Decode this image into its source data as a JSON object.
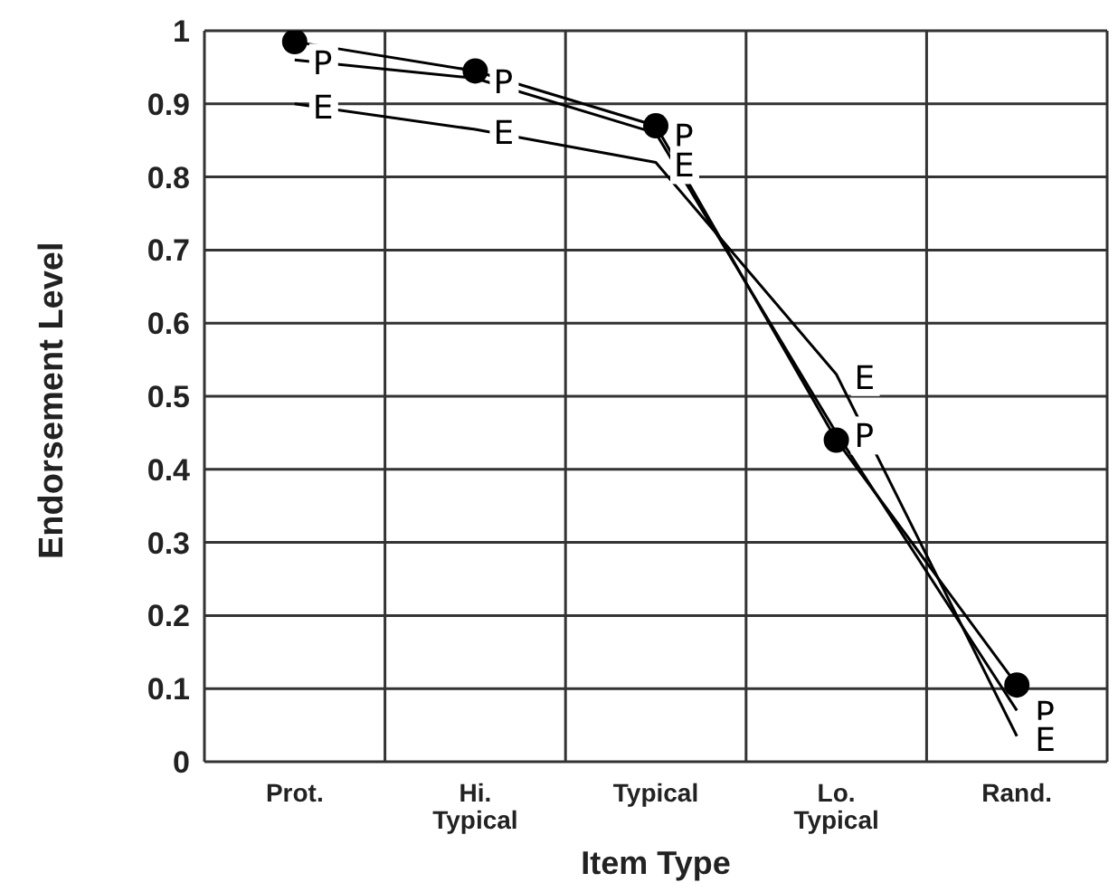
{
  "chart_data": {
    "type": "line",
    "xlabel": "Item Type",
    "ylabel": "Endorsement Level",
    "categories": [
      "Prot.",
      "Hi.\nTypical",
      "Typical",
      "Lo.\nTypical",
      "Rand."
    ],
    "series": [
      {
        "color": "#000000",
        "marker": "circle",
        "values": [
          0.985,
          0.945,
          0.87,
          0.44,
          0.105
        ]
      },
      {
        "name": "P",
        "color": "#000000",
        "marker": "none",
        "values": [
          0.96,
          0.935,
          0.86,
          0.45,
          0.07
        ]
      },
      {
        "name": "E",
        "color": "#000000",
        "marker": "none",
        "values": [
          0.9,
          0.865,
          0.82,
          0.53,
          0.035
        ]
      }
    ],
    "ylim": [
      0,
      1
    ],
    "yticks": [
      0,
      0.1,
      0.2,
      0.3,
      0.4,
      0.5,
      0.6,
      0.7,
      0.8,
      0.9,
      1
    ],
    "grid": true,
    "legend": false
  }
}
